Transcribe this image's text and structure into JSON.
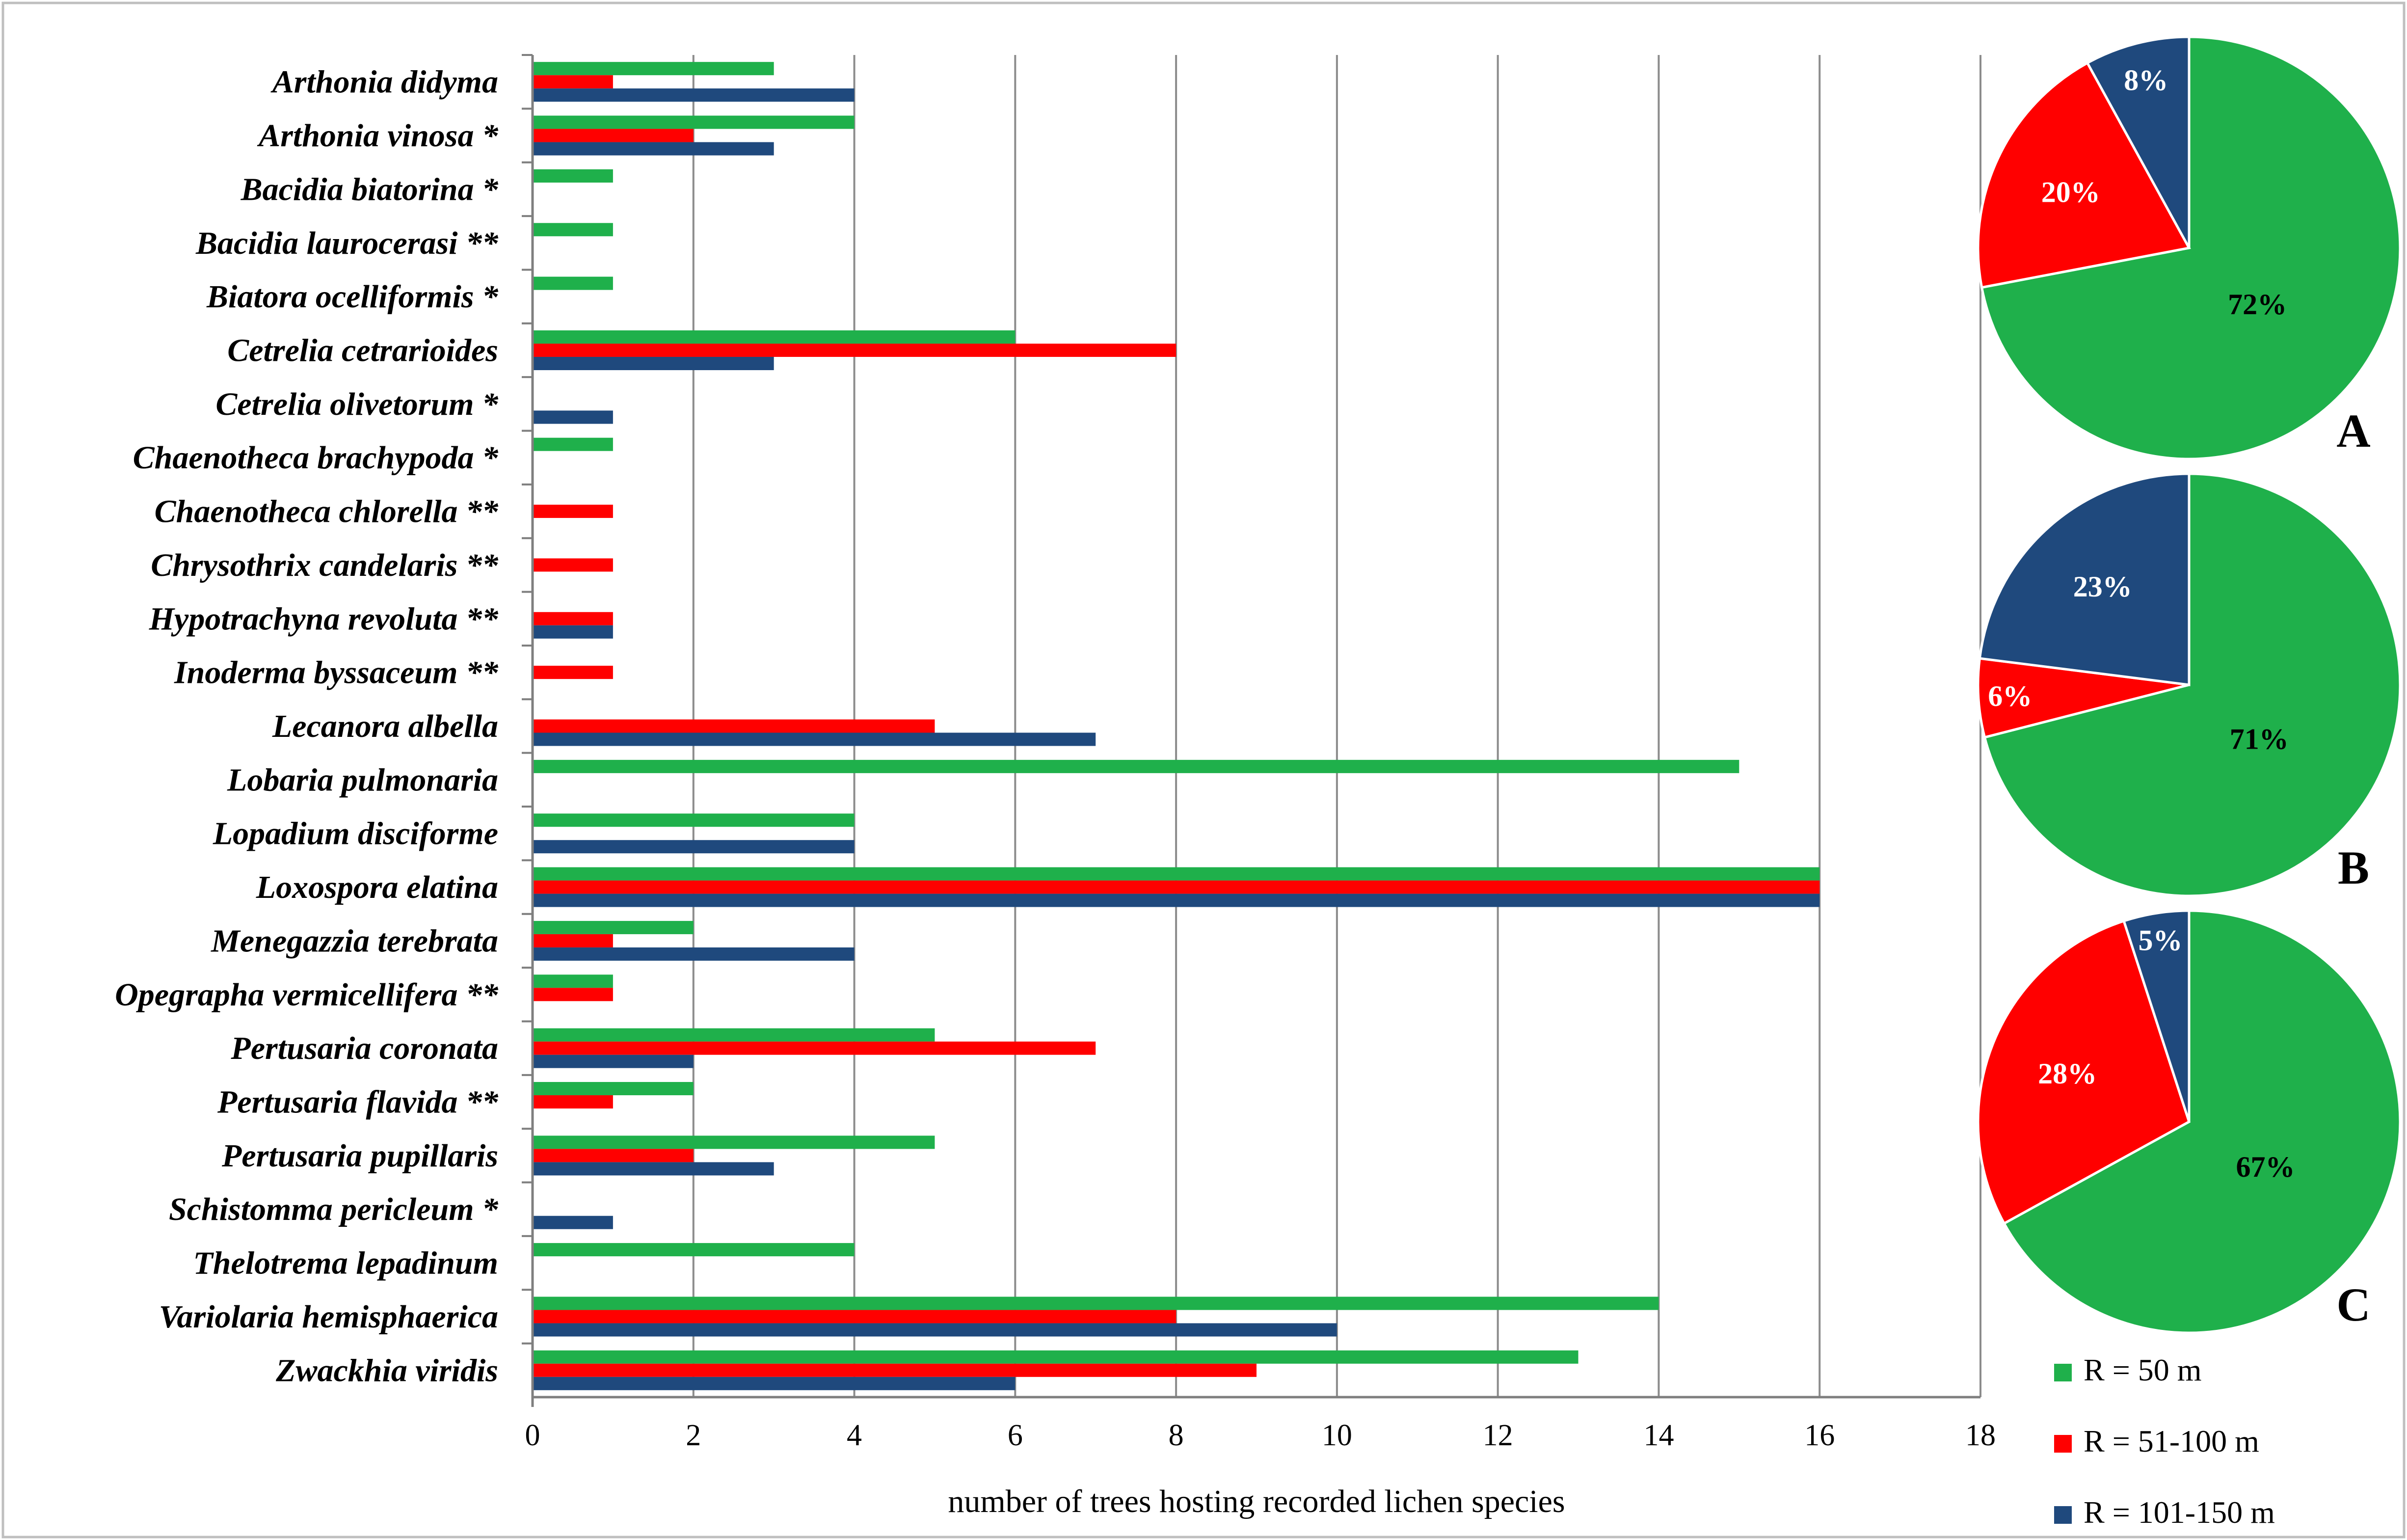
{
  "chart_data": [
    {
      "type": "bar",
      "orientation": "horizontal",
      "xlabel": "number of trees hosting recorded lichen species",
      "xlim": [
        0,
        18
      ],
      "xticks": [
        0,
        2,
        4,
        6,
        8,
        10,
        12,
        14,
        16,
        18
      ],
      "grid": "vertical",
      "categories": [
        "Arthonia didyma",
        "Arthonia vinosa *",
        "Bacidia biatorina *",
        "Bacidia laurocerasi **",
        "Biatora ocelliformis *",
        "Cetrelia cetrarioides",
        "Cetrelia olivetorum *",
        "Chaenotheca brachypoda *",
        "Chaenotheca chlorella **",
        "Chrysothrix candelaris **",
        "Hypotrachyna revoluta **",
        "Inoderma byssaceum **",
        "Lecanora albella",
        "Lobaria pulmonaria",
        "Lopadium disciforme",
        "Loxospora elatina",
        "Menegazzia terebrata",
        "Opegrapha vermicellifera **",
        "Pertusaria coronata",
        "Pertusaria flavida **",
        "Pertusaria pupillaris",
        "Schistomma pericleum *",
        "Thelotrema lepadinum",
        "Variolaria hemisphaerica",
        "Zwackhia viridis"
      ],
      "series": [
        {
          "name": "R = 50 m",
          "color": "#1fb04b",
          "values": [
            3,
            4,
            1,
            1,
            1,
            6,
            0,
            1,
            0,
            0,
            0,
            0,
            0,
            15,
            4,
            16,
            2,
            1,
            5,
            2,
            5,
            0,
            4,
            14,
            13
          ]
        },
        {
          "name": "R = 51-100 m",
          "color": "#ff0000",
          "values": [
            1,
            2,
            0,
            0,
            0,
            8,
            0,
            0,
            1,
            1,
            1,
            1,
            5,
            0,
            0,
            16,
            1,
            1,
            7,
            1,
            2,
            0,
            0,
            8,
            9
          ]
        },
        {
          "name": "R = 101-150 m",
          "color": "#1f497d",
          "values": [
            4,
            3,
            0,
            0,
            0,
            3,
            1,
            0,
            0,
            0,
            1,
            0,
            7,
            0,
            4,
            16,
            4,
            0,
            2,
            0,
            3,
            1,
            0,
            10,
            6
          ]
        }
      ]
    },
    {
      "type": "pie",
      "panel": "A",
      "labels": [
        "R = 50 m",
        "R = 51-100 m",
        "R = 101-150 m"
      ],
      "values": [
        72,
        20,
        8
      ],
      "value_labels": [
        "72%",
        "20%",
        "8%"
      ],
      "colors": [
        "#1fb04b",
        "#ff0000",
        "#1f497d"
      ]
    },
    {
      "type": "pie",
      "panel": "B",
      "labels": [
        "R = 50 m",
        "R = 51-100 m",
        "R = 101-150 m"
      ],
      "values": [
        71,
        6,
        23
      ],
      "value_labels": [
        "71%",
        "6%",
        "23%"
      ],
      "colors": [
        "#1fb04b",
        "#ff0000",
        "#1f497d"
      ]
    },
    {
      "type": "pie",
      "panel": "C",
      "labels": [
        "R = 50 m",
        "R = 51-100 m",
        "R = 101-150 m"
      ],
      "values": [
        67,
        28,
        5
      ],
      "value_labels": [
        "67%",
        "28%",
        "5%"
      ],
      "colors": [
        "#1fb04b",
        "#ff0000",
        "#1f497d"
      ]
    }
  ],
  "legend": {
    "placement": "bottom-right",
    "entries": [
      {
        "label": "R = 50 m",
        "color": "#1fb04b"
      },
      {
        "label": "R = 51-100 m",
        "color": "#ff0000"
      },
      {
        "label": "R = 101-150 m",
        "color": "#1f497d"
      }
    ]
  }
}
